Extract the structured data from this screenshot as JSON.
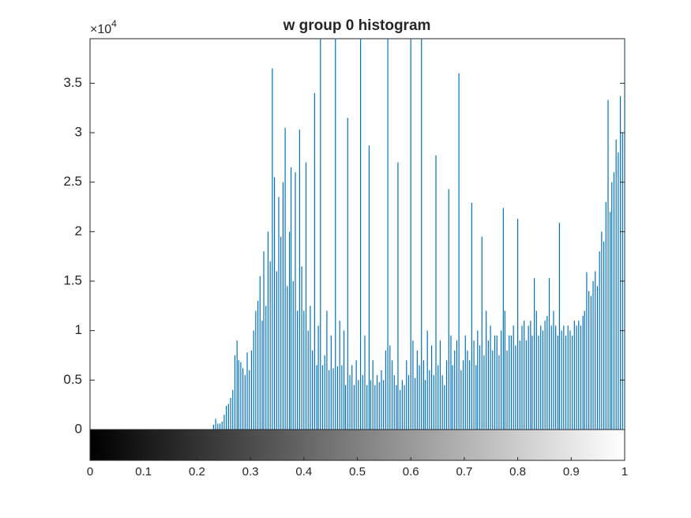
{
  "chart_data": {
    "type": "stem",
    "title": "w group 0 histogram",
    "y_multiplier": {
      "base": "×10",
      "exponent": "4"
    },
    "color": "#0072bd",
    "xlim": [
      0,
      1
    ],
    "ylim": [
      0,
      39500
    ],
    "xticks": [
      0,
      0.1,
      0.2,
      0.3,
      0.4,
      0.5,
      0.6,
      0.7,
      0.8,
      0.9,
      1
    ],
    "yticks": [
      0,
      {
        "value": 5000,
        "label": "0.5"
      },
      {
        "value": 10000,
        "label": "1"
      },
      {
        "value": 15000,
        "label": "1.5"
      },
      {
        "value": 20000,
        "label": "2"
      },
      {
        "value": 25000,
        "label": "2.5"
      },
      {
        "value": 30000,
        "label": "3"
      },
      {
        "value": 35000,
        "label": "3.5"
      }
    ],
    "x": [
      0.231,
      0.235,
      0.239,
      0.243,
      0.247,
      0.251,
      0.255,
      0.259,
      0.263,
      0.267,
      0.271,
      0.275,
      0.278,
      0.282,
      0.286,
      0.29,
      0.294,
      0.298,
      0.302,
      0.306,
      0.31,
      0.314,
      0.318,
      0.322,
      0.325,
      0.329,
      0.333,
      0.337,
      0.341,
      0.345,
      0.349,
      0.353,
      0.357,
      0.361,
      0.365,
      0.369,
      0.373,
      0.376,
      0.38,
      0.384,
      0.388,
      0.392,
      0.396,
      0.4,
      0.404,
      0.408,
      0.412,
      0.416,
      0.42,
      0.424,
      0.427,
      0.431,
      0.435,
      0.439,
      0.443,
      0.447,
      0.451,
      0.455,
      0.459,
      0.463,
      0.467,
      0.471,
      0.475,
      0.478,
      0.482,
      0.486,
      0.49,
      0.494,
      0.498,
      0.502,
      0.506,
      0.51,
      0.514,
      0.518,
      0.522,
      0.525,
      0.529,
      0.533,
      0.537,
      0.541,
      0.545,
      0.549,
      0.553,
      0.557,
      0.561,
      0.565,
      0.569,
      0.573,
      0.576,
      0.58,
      0.584,
      0.588,
      0.592,
      0.596,
      0.6,
      0.604,
      0.608,
      0.612,
      0.616,
      0.62,
      0.624,
      0.627,
      0.631,
      0.635,
      0.639,
      0.643,
      0.647,
      0.651,
      0.655,
      0.659,
      0.663,
      0.667,
      0.671,
      0.675,
      0.678,
      0.682,
      0.686,
      0.69,
      0.694,
      0.698,
      0.702,
      0.706,
      0.71,
      0.714,
      0.718,
      0.722,
      0.725,
      0.729,
      0.733,
      0.737,
      0.741,
      0.745,
      0.749,
      0.753,
      0.757,
      0.761,
      0.765,
      0.769,
      0.773,
      0.776,
      0.78,
      0.784,
      0.788,
      0.792,
      0.796,
      0.8,
      0.804,
      0.808,
      0.812,
      0.816,
      0.82,
      0.824,
      0.827,
      0.831,
      0.835,
      0.839,
      0.843,
      0.847,
      0.851,
      0.855,
      0.859,
      0.863,
      0.867,
      0.871,
      0.875,
      0.878,
      0.882,
      0.886,
      0.89,
      0.894,
      0.898,
      0.902,
      0.906,
      0.91,
      0.914,
      0.918,
      0.922,
      0.925,
      0.929,
      0.933,
      0.937,
      0.941,
      0.945,
      0.949,
      0.953,
      0.957,
      0.961,
      0.965,
      0.969,
      0.973,
      0.976,
      0.98,
      0.984,
      0.988,
      0.992,
      0.996,
      1.0
    ],
    "values": [
      500,
      1100,
      600,
      600,
      800,
      1500,
      2400,
      2600,
      3200,
      4000,
      7500,
      9000,
      7000,
      6800,
      6200,
      5500,
      7800,
      6000,
      8000,
      10000,
      12000,
      13000,
      15500,
      11000,
      18000,
      12500,
      20000,
      17000,
      36500,
      25500,
      16000,
      23500,
      19500,
      25000,
      30500,
      14500,
      20000,
      26500,
      15000,
      26000,
      12000,
      30300,
      16500,
      12000,
      27000,
      10000,
      12500,
      8000,
      34000,
      6500,
      10500,
      45000,
      6500,
      7500,
      12000,
      6000,
      9500,
      6200,
      45000,
      6400,
      11000,
      6500,
      10000,
      4500,
      31500,
      5500,
      6500,
      4500,
      7000,
      5000,
      45000,
      5500,
      9500,
      4500,
      28700,
      5000,
      7000,
      4500,
      5500,
      4800,
      6000,
      5000,
      8000,
      45000,
      8500,
      7000,
      5500,
      4500,
      27000,
      4000,
      5000,
      4500,
      7000,
      5500,
      45000,
      9000,
      5200,
      8000,
      6500,
      45000,
      7000,
      5000,
      10000,
      6000,
      8500,
      5500,
      27700,
      6500,
      9000,
      5500,
      4500,
      7000,
      24300,
      9500,
      6500,
      8000,
      9000,
      36000,
      6000,
      7000,
      9500,
      8000,
      7000,
      22900,
      9000,
      6500,
      10000,
      8500,
      19500,
      7500,
      12000,
      9000,
      10500,
      8000,
      9500,
      9500,
      7500,
      10000,
      22400,
      12000,
      8000,
      9500,
      9500,
      10500,
      8500,
      21300,
      9000,
      10500,
      11000,
      9000,
      10500,
      11000,
      9500,
      15300,
      12000,
      9500,
      10500,
      10000,
      11000,
      11500,
      15300,
      10500,
      12000,
      10500,
      9500,
      20900,
      10000,
      10500,
      9500,
      10500,
      10000,
      9500,
      11000,
      10500,
      11000,
      10500,
      11500,
      12000,
      15900,
      14000,
      13500,
      15000,
      16000,
      14500,
      18000,
      20000,
      19000,
      23000,
      33300,
      22000,
      25000,
      26000,
      29300,
      28000,
      33700,
      30000,
      45000
    ]
  }
}
